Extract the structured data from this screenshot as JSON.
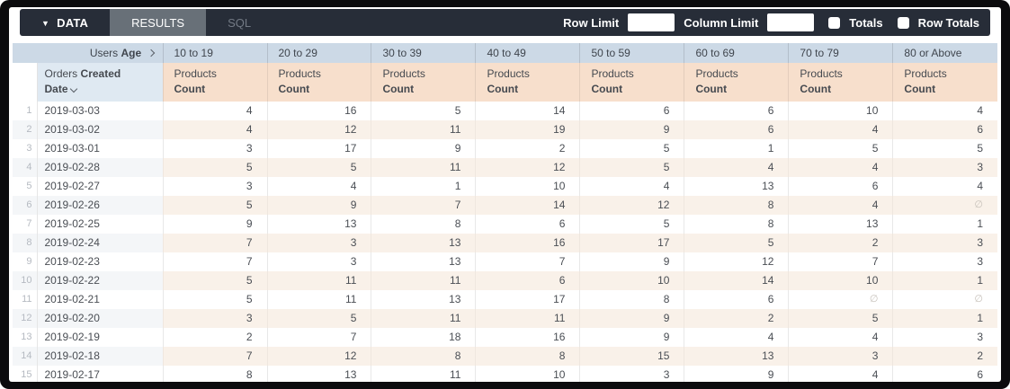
{
  "topbar": {
    "tabs": [
      {
        "id": "data",
        "label": "DATA"
      },
      {
        "id": "results",
        "label": "RESULTS"
      },
      {
        "id": "sql",
        "label": "SQL"
      }
    ],
    "active_tab": "results",
    "row_limit_label": "Row Limit",
    "row_limit_value": "",
    "column_limit_label": "Column Limit",
    "column_limit_value": "",
    "totals_label": "Totals",
    "totals_checked": false,
    "row_totals_label": "Row Totals",
    "row_totals_checked": false
  },
  "table": {
    "pivot": {
      "view": "Users",
      "field": "Age"
    },
    "pivot_values": [
      "10 to 19",
      "20 to 29",
      "30 to 39",
      "40 to 49",
      "50 to 59",
      "60 to 69",
      "70 to 79",
      "80 or Above"
    ],
    "dimension": {
      "view": "Orders",
      "field": "Created Date"
    },
    "measure": {
      "view": "Products",
      "field": "Count"
    },
    "null_symbol": "∅",
    "rows": [
      {
        "num": 1,
        "date": "2019-03-03",
        "values": [
          4,
          16,
          5,
          14,
          6,
          6,
          10,
          4
        ]
      },
      {
        "num": 2,
        "date": "2019-03-02",
        "values": [
          4,
          12,
          11,
          19,
          9,
          6,
          4,
          6
        ]
      },
      {
        "num": 3,
        "date": "2019-03-01",
        "values": [
          3,
          17,
          9,
          2,
          5,
          1,
          5,
          5
        ]
      },
      {
        "num": 4,
        "date": "2019-02-28",
        "values": [
          5,
          5,
          11,
          12,
          5,
          4,
          4,
          3
        ]
      },
      {
        "num": 5,
        "date": "2019-02-27",
        "values": [
          3,
          4,
          1,
          10,
          4,
          13,
          6,
          4
        ]
      },
      {
        "num": 6,
        "date": "2019-02-26",
        "values": [
          5,
          9,
          7,
          14,
          12,
          8,
          4,
          null
        ]
      },
      {
        "num": 7,
        "date": "2019-02-25",
        "values": [
          9,
          13,
          8,
          6,
          5,
          8,
          13,
          1
        ]
      },
      {
        "num": 8,
        "date": "2019-02-24",
        "values": [
          7,
          3,
          13,
          16,
          17,
          5,
          2,
          3
        ]
      },
      {
        "num": 9,
        "date": "2019-02-23",
        "values": [
          7,
          3,
          13,
          7,
          9,
          12,
          7,
          3
        ]
      },
      {
        "num": 10,
        "date": "2019-02-22",
        "values": [
          5,
          11,
          11,
          6,
          10,
          14,
          10,
          1
        ]
      },
      {
        "num": 11,
        "date": "2019-02-21",
        "values": [
          5,
          11,
          13,
          17,
          8,
          6,
          null,
          null
        ]
      },
      {
        "num": 12,
        "date": "2019-02-20",
        "values": [
          3,
          5,
          11,
          11,
          9,
          2,
          5,
          1
        ]
      },
      {
        "num": 13,
        "date": "2019-02-19",
        "values": [
          2,
          7,
          18,
          16,
          9,
          4,
          4,
          3
        ]
      },
      {
        "num": 14,
        "date": "2019-02-18",
        "values": [
          7,
          12,
          8,
          8,
          15,
          13,
          3,
          2
        ]
      },
      {
        "num": 15,
        "date": "2019-02-17",
        "values": [
          8,
          13,
          11,
          10,
          3,
          9,
          4,
          6
        ]
      }
    ]
  },
  "colors": {
    "topbar_bg": "#272d38",
    "active_tab_bg": "#687078",
    "pivot_header_bg": "#ccd9e6",
    "dimension_header_bg": "#dfe9f2",
    "measure_header_bg": "#f7dfcc",
    "even_row_measure_bg": "#f9f1e9",
    "even_row_dim_bg": "#f4f6f8"
  }
}
